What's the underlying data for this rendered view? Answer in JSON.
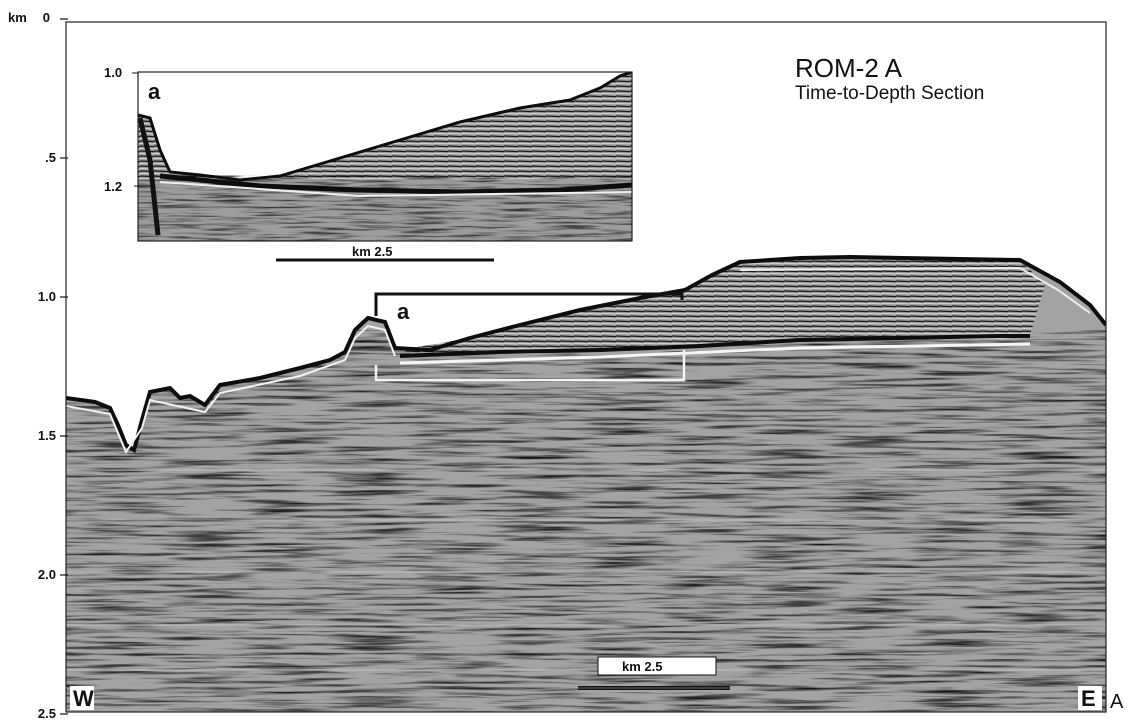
{
  "figure": {
    "title": "ROM-2 A",
    "subtitle": "Time-to-Depth Section",
    "depth_axis": {
      "unit_label": "km",
      "ticks": [
        "0",
        ".5",
        "1.0",
        "1.5",
        "2.0",
        "2.5"
      ],
      "values": [
        0,
        0.5,
        1.0,
        1.5,
        2.0,
        2.5
      ]
    },
    "west_label": "W",
    "east_label": "E",
    "corner_label": "A",
    "scale_bar_label": "km 2.5",
    "zoom_marker": "a",
    "inset": {
      "marker": "a",
      "ticks": [
        "1.0",
        "1.2"
      ],
      "scale_bar_label": "km 2.5"
    }
  },
  "colors": {
    "background": "#ffffff",
    "seismic_base": "#a8a8a8",
    "reflector": "#0d0d0d",
    "frame": "#222222"
  }
}
